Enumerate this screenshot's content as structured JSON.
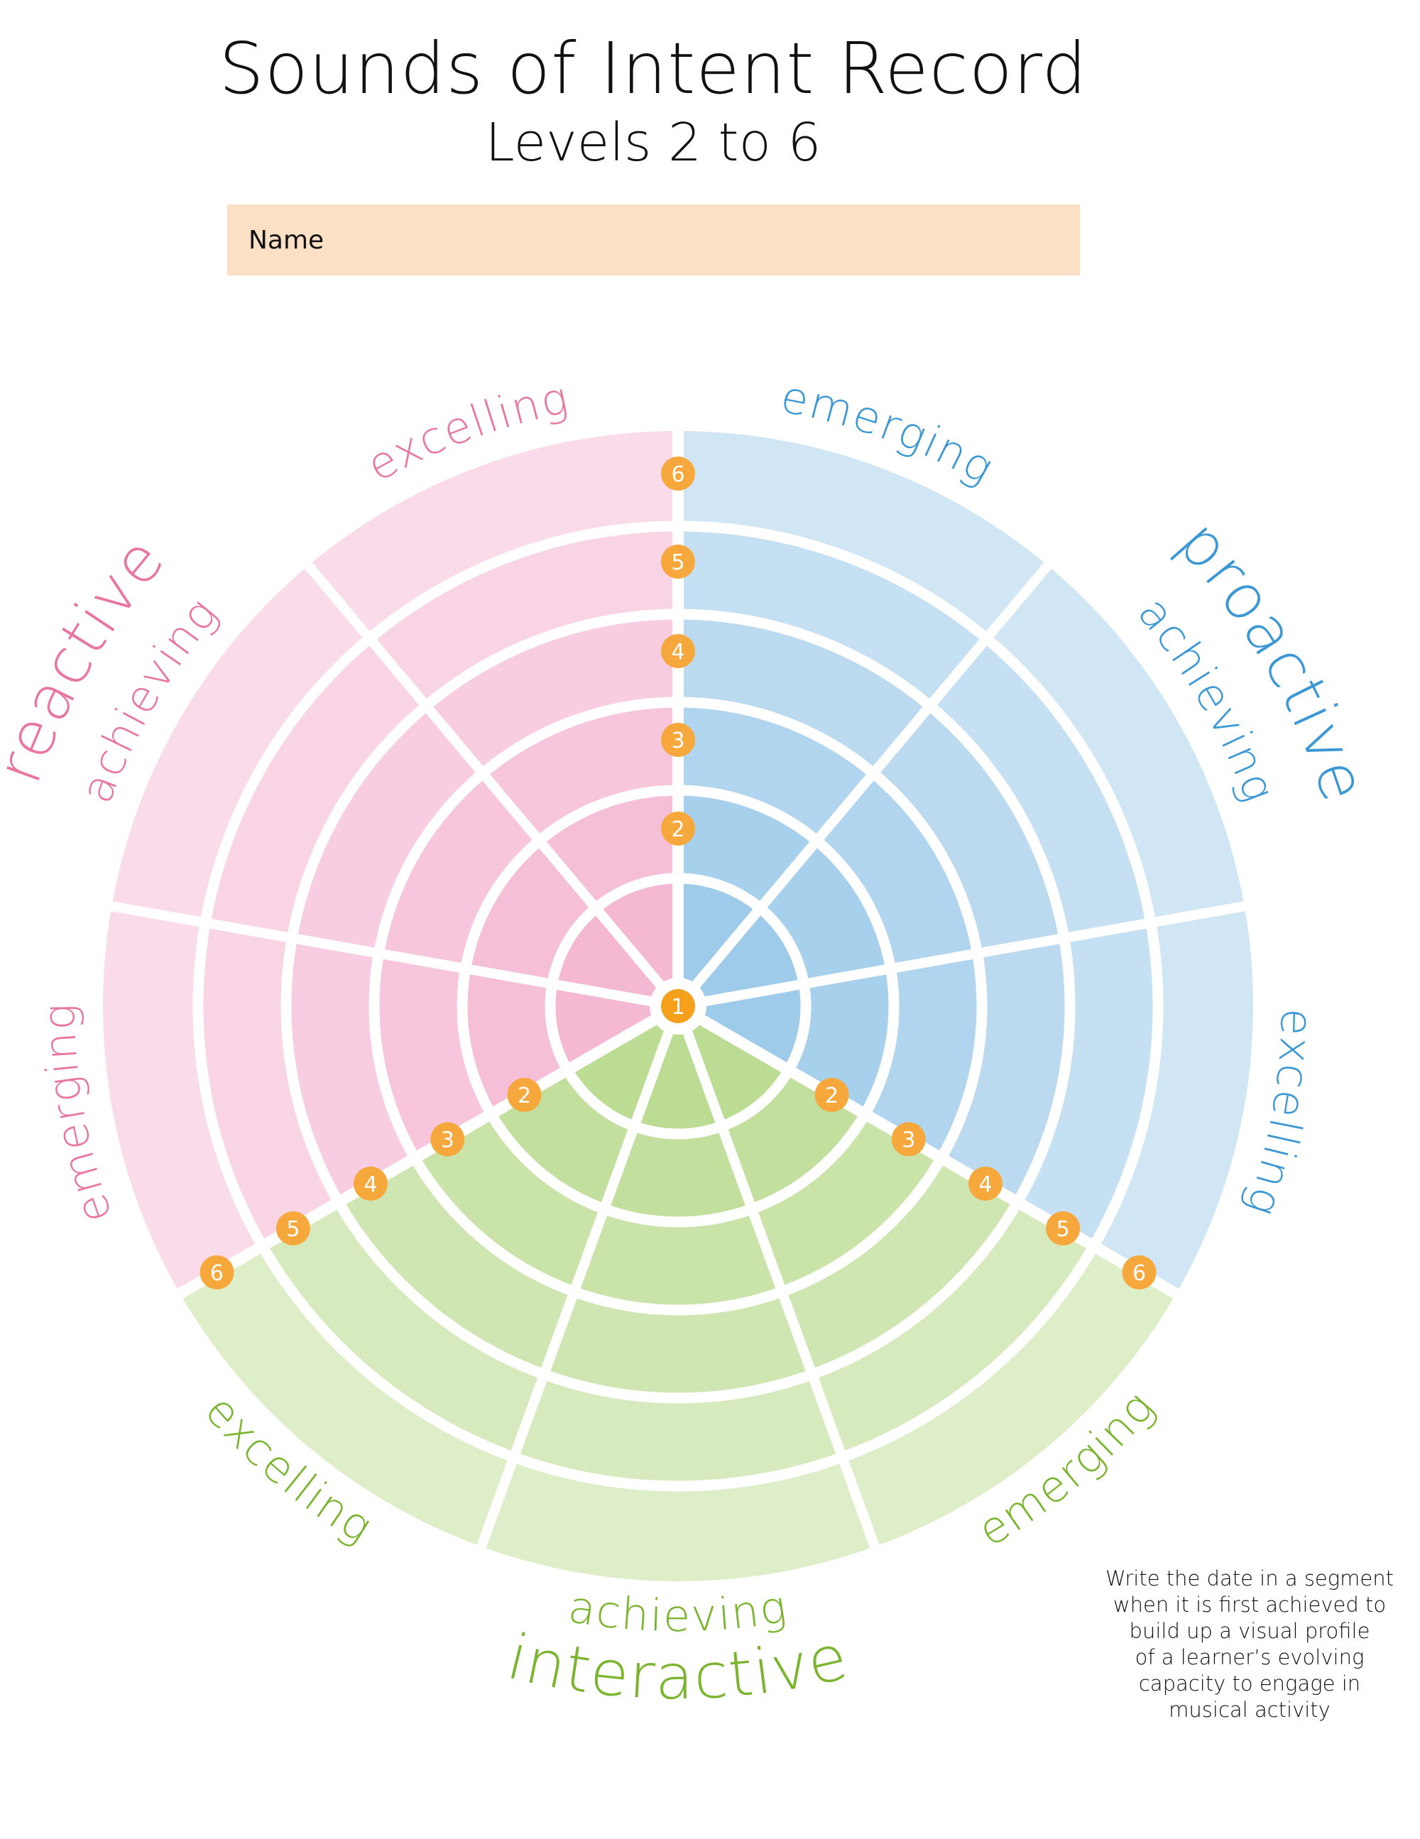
{
  "header": {
    "title": "Sounds of Intent Record",
    "subtitle": "Levels 2 to 6"
  },
  "name_field": {
    "label": "Name",
    "value": ""
  },
  "wheel": {
    "sectors": [
      {
        "name": "proactive",
        "text_color": "#3b98d5",
        "start_deg": 0,
        "sub_labels": [
          "emerging",
          "achieving",
          "excelling"
        ],
        "ring_colors": [
          "#9ecbea",
          "#a7d0ec",
          "#b1d5ee",
          "#bbdaf0",
          "#c5e0f2",
          "#d0e6f4"
        ]
      },
      {
        "name": "interactive",
        "text_color": "#7bb530",
        "start_deg": 120,
        "sub_labels": [
          "emerging",
          "achieving",
          "excelling"
        ],
        "ring_colors": [
          "#bcdc94",
          "#c3df9e",
          "#c9e3a8",
          "#d0e6b2",
          "#d7eabd",
          "#deeec8"
        ]
      },
      {
        "name": "reactive",
        "text_color": "#e9769f",
        "start_deg": 240,
        "sub_labels": [
          "emerging",
          "achieving",
          "excelling"
        ],
        "ring_colors": [
          "#f5b8d3",
          "#f6bfd8",
          "#f7c6dc",
          "#f8cde1",
          "#f9d4e5",
          "#fadbe9"
        ]
      }
    ],
    "center_level": "1",
    "levels": [
      "2",
      "3",
      "4",
      "5",
      "6"
    ],
    "marker_color": "#f7a83c",
    "center_marker_color": "#f5a01a"
  },
  "instructions": [
    "Write the date in a segment",
    "when it is first achieved to",
    "build up a visual profile",
    "of a learner’s evolving",
    "capacity to engage in",
    "musical activity"
  ]
}
